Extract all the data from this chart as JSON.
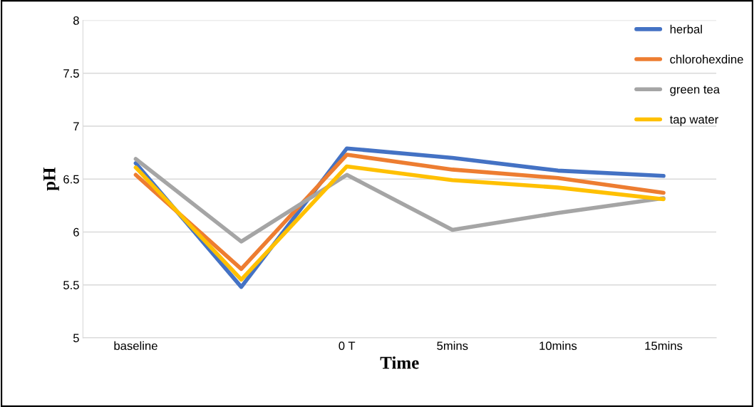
{
  "chart_data": {
    "type": "line",
    "xlabel": "Time",
    "ylabel": "pH",
    "categories": [
      "baseline",
      null,
      "0 T",
      "5mins",
      "10mins",
      "15mins"
    ],
    "series": [
      {
        "name": "herbal",
        "color": "#4472c4",
        "values": [
          6.65,
          5.48,
          6.79,
          6.7,
          6.58,
          6.53
        ]
      },
      {
        "name": "chlorohexdine",
        "color": "#ed7d31",
        "values": [
          6.54,
          5.65,
          6.73,
          6.59,
          6.51,
          6.37
        ]
      },
      {
        "name": "green tea",
        "color": "#a5a5a5",
        "values": [
          6.69,
          5.91,
          6.54,
          6.02,
          6.18,
          6.32
        ]
      },
      {
        "name": "tap water",
        "color": "#ffc000",
        "values": [
          6.61,
          5.55,
          6.62,
          6.49,
          6.42,
          6.31
        ]
      }
    ],
    "ylim": [
      5,
      8
    ],
    "yticks": [
      5,
      5.5,
      6,
      6.5,
      7,
      7.5,
      8
    ],
    "grid": "y",
    "legend": "top right",
    "marker": "none",
    "line_style": "solid"
  }
}
